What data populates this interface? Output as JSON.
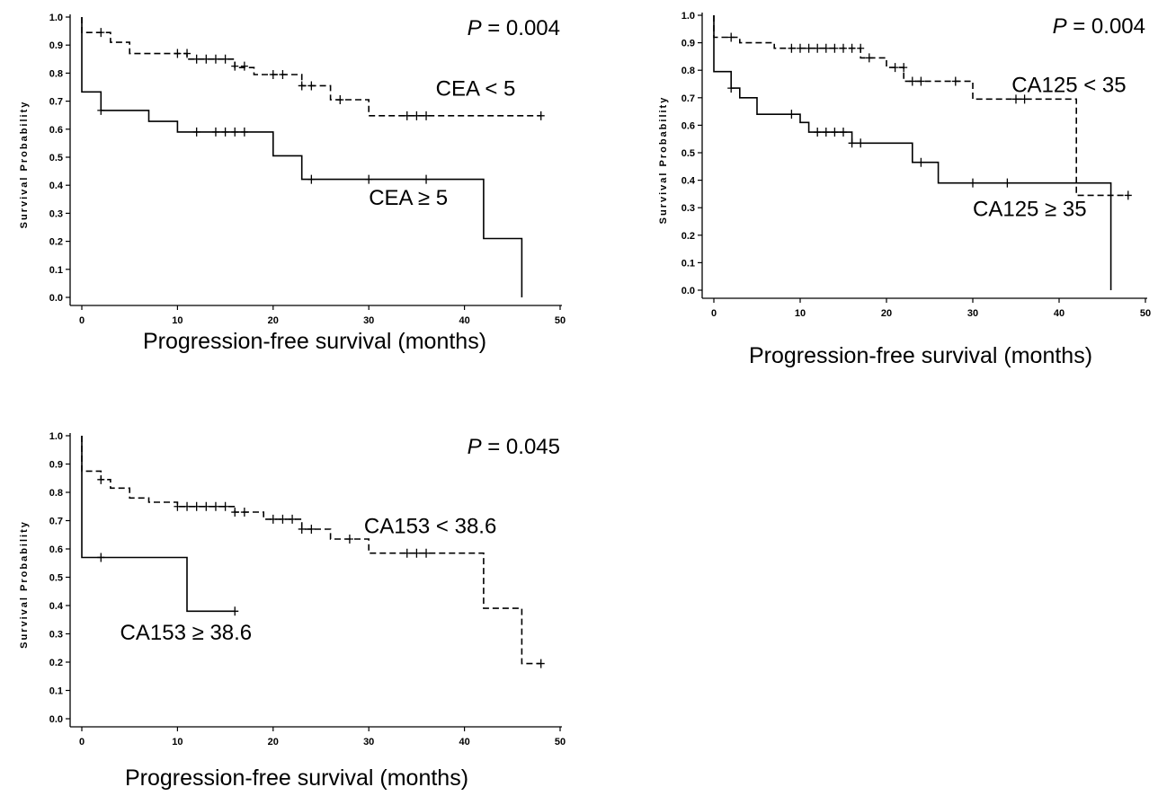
{
  "chart_data": [
    {
      "type": "line",
      "subtype": "kaplan-meier",
      "xlabel": "Progression-free survival (months)",
      "ylabel": "Survival Probability",
      "xlim": [
        0,
        50
      ],
      "ylim": [
        0,
        1.0
      ],
      "xticks": [
        "0",
        "10",
        "20",
        "30",
        "40",
        "50"
      ],
      "yticks": [
        "0.0",
        "0.1",
        "0.2",
        "0.3",
        "0.4",
        "0.5",
        "0.6",
        "0.7",
        "0.8",
        "0.9",
        "1.0"
      ],
      "grid": false,
      "pvalue_prefix": "P",
      "pvalue_text": " = 0.004",
      "series": [
        {
          "name": "CEA < 5",
          "style": "dashed",
          "steps": [
            [
              0,
              1.0
            ],
            [
              0,
              0.945
            ],
            [
              3,
              0.945
            ],
            [
              3,
              0.91
            ],
            [
              5,
              0.91
            ],
            [
              5,
              0.87
            ],
            [
              11,
              0.87
            ],
            [
              11,
              0.85
            ],
            [
              16,
              0.85
            ],
            [
              16,
              0.82
            ],
            [
              18,
              0.82
            ],
            [
              18,
              0.795
            ],
            [
              23,
              0.795
            ],
            [
              23,
              0.755
            ],
            [
              26,
              0.755
            ],
            [
              26,
              0.705
            ],
            [
              30,
              0.705
            ],
            [
              30,
              0.648
            ],
            [
              48,
              0.648
            ]
          ],
          "censored": [
            [
              2,
              0.945
            ],
            [
              10,
              0.87
            ],
            [
              11,
              0.87
            ],
            [
              12,
              0.85
            ],
            [
              13,
              0.85
            ],
            [
              14,
              0.85
            ],
            [
              15,
              0.85
            ],
            [
              16,
              0.825
            ],
            [
              17,
              0.825
            ],
            [
              20,
              0.795
            ],
            [
              21,
              0.795
            ],
            [
              23,
              0.755
            ],
            [
              24,
              0.755
            ],
            [
              27,
              0.705
            ],
            [
              34,
              0.648
            ],
            [
              35,
              0.648
            ],
            [
              36,
              0.648
            ],
            [
              48,
              0.648
            ]
          ]
        },
        {
          "name": "CEA ≥ 5",
          "style": "solid",
          "steps": [
            [
              0,
              1.0
            ],
            [
              0,
              0.733
            ],
            [
              2,
              0.733
            ],
            [
              2,
              0.667
            ],
            [
              7,
              0.667
            ],
            [
              7,
              0.628
            ],
            [
              10,
              0.628
            ],
            [
              10,
              0.59
            ],
            [
              20,
              0.59
            ],
            [
              20,
              0.505
            ],
            [
              23,
              0.505
            ],
            [
              23,
              0.421
            ],
            [
              42,
              0.421
            ],
            [
              42,
              0.21
            ],
            [
              46,
              0.21
            ],
            [
              46,
              0.0
            ]
          ],
          "censored": [
            [
              2,
              0.667
            ],
            [
              12,
              0.59
            ],
            [
              14,
              0.59
            ],
            [
              15,
              0.59
            ],
            [
              16,
              0.59
            ],
            [
              17,
              0.59
            ],
            [
              24,
              0.421
            ],
            [
              30,
              0.421
            ],
            [
              36,
              0.421
            ]
          ]
        }
      ],
      "annotations": [
        {
          "text": "CEA < 5",
          "x": 37,
          "y": 0.72
        },
        {
          "text": "CEA ≥ 5",
          "x": 30,
          "y": 0.33
        }
      ]
    },
    {
      "type": "line",
      "subtype": "kaplan-meier",
      "xlabel": "Progression-free survival (months)",
      "ylabel": "Survival Probability",
      "xlim": [
        0,
        50
      ],
      "ylim": [
        0,
        1.0
      ],
      "xticks": [
        "0",
        "10",
        "20",
        "30",
        "40",
        "50"
      ],
      "yticks": [
        "0.0",
        "0.1",
        "0.2",
        "0.3",
        "0.4",
        "0.5",
        "0.6",
        "0.7",
        "0.8",
        "0.9",
        "1.0"
      ],
      "grid": false,
      "pvalue_prefix": "P",
      "pvalue_text": " = 0.004",
      "series": [
        {
          "name": "CA125 < 35",
          "style": "dashed",
          "steps": [
            [
              0,
              1.0
            ],
            [
              0,
              0.92
            ],
            [
              3,
              0.92
            ],
            [
              3,
              0.9
            ],
            [
              7,
              0.9
            ],
            [
              7,
              0.88
            ],
            [
              17,
              0.88
            ],
            [
              17,
              0.845
            ],
            [
              20,
              0.845
            ],
            [
              20,
              0.81
            ],
            [
              22,
              0.81
            ],
            [
              22,
              0.76
            ],
            [
              30,
              0.76
            ],
            [
              30,
              0.695
            ],
            [
              42,
              0.695
            ],
            [
              42,
              0.345
            ],
            [
              48,
              0.345
            ]
          ],
          "censored": [
            [
              2,
              0.92
            ],
            [
              9,
              0.88
            ],
            [
              10,
              0.88
            ],
            [
              11,
              0.88
            ],
            [
              12,
              0.88
            ],
            [
              13,
              0.88
            ],
            [
              14,
              0.88
            ],
            [
              15,
              0.88
            ],
            [
              16,
              0.88
            ],
            [
              17,
              0.88
            ],
            [
              18,
              0.845
            ],
            [
              21,
              0.81
            ],
            [
              22,
              0.81
            ],
            [
              23,
              0.76
            ],
            [
              24,
              0.76
            ],
            [
              28,
              0.76
            ],
            [
              35,
              0.695
            ],
            [
              36,
              0.695
            ],
            [
              48,
              0.345
            ]
          ]
        },
        {
          "name": "CA125 ≥ 35",
          "style": "solid",
          "steps": [
            [
              0,
              1.0
            ],
            [
              0,
              0.795
            ],
            [
              2,
              0.795
            ],
            [
              2,
              0.735
            ],
            [
              3,
              0.735
            ],
            [
              3,
              0.7
            ],
            [
              5,
              0.7
            ],
            [
              5,
              0.64
            ],
            [
              10,
              0.64
            ],
            [
              10,
              0.61
            ],
            [
              11,
              0.61
            ],
            [
              11,
              0.575
            ],
            [
              16,
              0.575
            ],
            [
              16,
              0.535
            ],
            [
              23,
              0.535
            ],
            [
              23,
              0.465
            ],
            [
              26,
              0.465
            ],
            [
              26,
              0.39
            ],
            [
              46,
              0.39
            ],
            [
              46,
              0.0
            ]
          ],
          "censored": [
            [
              2,
              0.735
            ],
            [
              9,
              0.64
            ],
            [
              12,
              0.575
            ],
            [
              13,
              0.575
            ],
            [
              14,
              0.575
            ],
            [
              15,
              0.575
            ],
            [
              16,
              0.535
            ],
            [
              17,
              0.535
            ],
            [
              24,
              0.465
            ],
            [
              30,
              0.39
            ],
            [
              34,
              0.39
            ]
          ]
        }
      ],
      "annotations": [
        {
          "text": "CA125 < 35",
          "x": 34.5,
          "y": 0.72
        },
        {
          "text": "CA125 ≥ 35",
          "x": 30,
          "y": 0.27
        }
      ]
    },
    {
      "type": "line",
      "subtype": "kaplan-meier",
      "xlabel": "Progression-free survival (months)",
      "ylabel": "Survival Probability",
      "xlim": [
        0,
        50
      ],
      "ylim": [
        0,
        1.0
      ],
      "xticks": [
        "0",
        "10",
        "20",
        "30",
        "40",
        "50"
      ],
      "yticks": [
        "0.0",
        "0.1",
        "0.2",
        "0.3",
        "0.4",
        "0.5",
        "0.6",
        "0.7",
        "0.8",
        "0.9",
        "1.0"
      ],
      "grid": false,
      "pvalue_prefix": "P",
      "pvalue_text": " = 0.045",
      "series": [
        {
          "name": "CA153 < 38.6",
          "style": "dashed",
          "steps": [
            [
              0,
              1.0
            ],
            [
              0,
              0.875
            ],
            [
              2,
              0.875
            ],
            [
              2,
              0.845
            ],
            [
              3,
              0.845
            ],
            [
              3,
              0.815
            ],
            [
              5,
              0.815
            ],
            [
              5,
              0.78
            ],
            [
              7,
              0.78
            ],
            [
              7,
              0.765
            ],
            [
              10,
              0.765
            ],
            [
              10,
              0.75
            ],
            [
              16,
              0.75
            ],
            [
              16,
              0.73
            ],
            [
              19,
              0.73
            ],
            [
              19,
              0.705
            ],
            [
              23,
              0.705
            ],
            [
              23,
              0.67
            ],
            [
              26,
              0.67
            ],
            [
              26,
              0.635
            ],
            [
              30,
              0.635
            ],
            [
              30,
              0.585
            ],
            [
              42,
              0.585
            ],
            [
              42,
              0.39
            ],
            [
              46,
              0.39
            ],
            [
              46,
              0.195
            ],
            [
              48,
              0.195
            ]
          ],
          "censored": [
            [
              2,
              0.845
            ],
            [
              10,
              0.75
            ],
            [
              11,
              0.75
            ],
            [
              12,
              0.75
            ],
            [
              13,
              0.75
            ],
            [
              14,
              0.75
            ],
            [
              15,
              0.75
            ],
            [
              16,
              0.73
            ],
            [
              17,
              0.73
            ],
            [
              20,
              0.705
            ],
            [
              21,
              0.705
            ],
            [
              22,
              0.705
            ],
            [
              23,
              0.67
            ],
            [
              24,
              0.67
            ],
            [
              28,
              0.635
            ],
            [
              34,
              0.585
            ],
            [
              35,
              0.585
            ],
            [
              36,
              0.585
            ],
            [
              48,
              0.195
            ]
          ]
        },
        {
          "name": "CA153 ≥ 38.6",
          "style": "solid",
          "steps": [
            [
              0,
              1.0
            ],
            [
              0,
              0.57
            ],
            [
              11,
              0.57
            ],
            [
              11,
              0.38
            ],
            [
              16,
              0.38
            ]
          ],
          "censored": [
            [
              2,
              0.57
            ],
            [
              16,
              0.38
            ]
          ]
        }
      ],
      "annotations": [
        {
          "text": "CA153 < 38.6",
          "x": 29.5,
          "y": 0.655
        },
        {
          "text": "CA153 ≥ 38.6",
          "x": 4,
          "y": 0.28
        }
      ]
    }
  ]
}
